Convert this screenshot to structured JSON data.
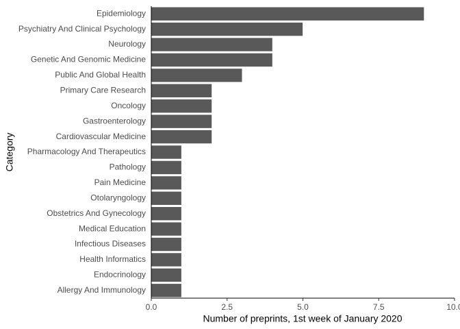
{
  "chart_data": {
    "type": "bar",
    "orientation": "horizontal",
    "x_label": "Number of preprints, 1st week of January 2020",
    "y_label": "Category",
    "categories": [
      "Epidemiology",
      "Psychiatry And Clinical Psychology",
      "Neurology",
      "Genetic And Genomic Medicine",
      "Public And Global Health",
      "Primary Care Research",
      "Oncology",
      "Gastroenterology",
      "Cardiovascular Medicine",
      "Pharmacology And Therapeutics",
      "Pathology",
      "Pain Medicine",
      "Otolaryngology",
      "Obstetrics And Gynecology",
      "Medical Education",
      "Infectious Diseases",
      "Health Informatics",
      "Endocrinology",
      "Allergy And Immunology"
    ],
    "values": [
      9,
      5,
      4,
      4,
      3,
      2,
      2,
      2,
      2,
      1,
      1,
      1,
      1,
      1,
      1,
      1,
      1,
      1,
      1
    ],
    "color": "#595959",
    "xlim": [
      0,
      10
    ],
    "xticks": [
      {
        "value": 0,
        "label": "0.0"
      },
      2.5,
      {
        "value": 5,
        "label": "5.0"
      },
      7.5,
      {
        "value": 10,
        "label": "10.0"
      }
    ],
    "grid": false
  }
}
